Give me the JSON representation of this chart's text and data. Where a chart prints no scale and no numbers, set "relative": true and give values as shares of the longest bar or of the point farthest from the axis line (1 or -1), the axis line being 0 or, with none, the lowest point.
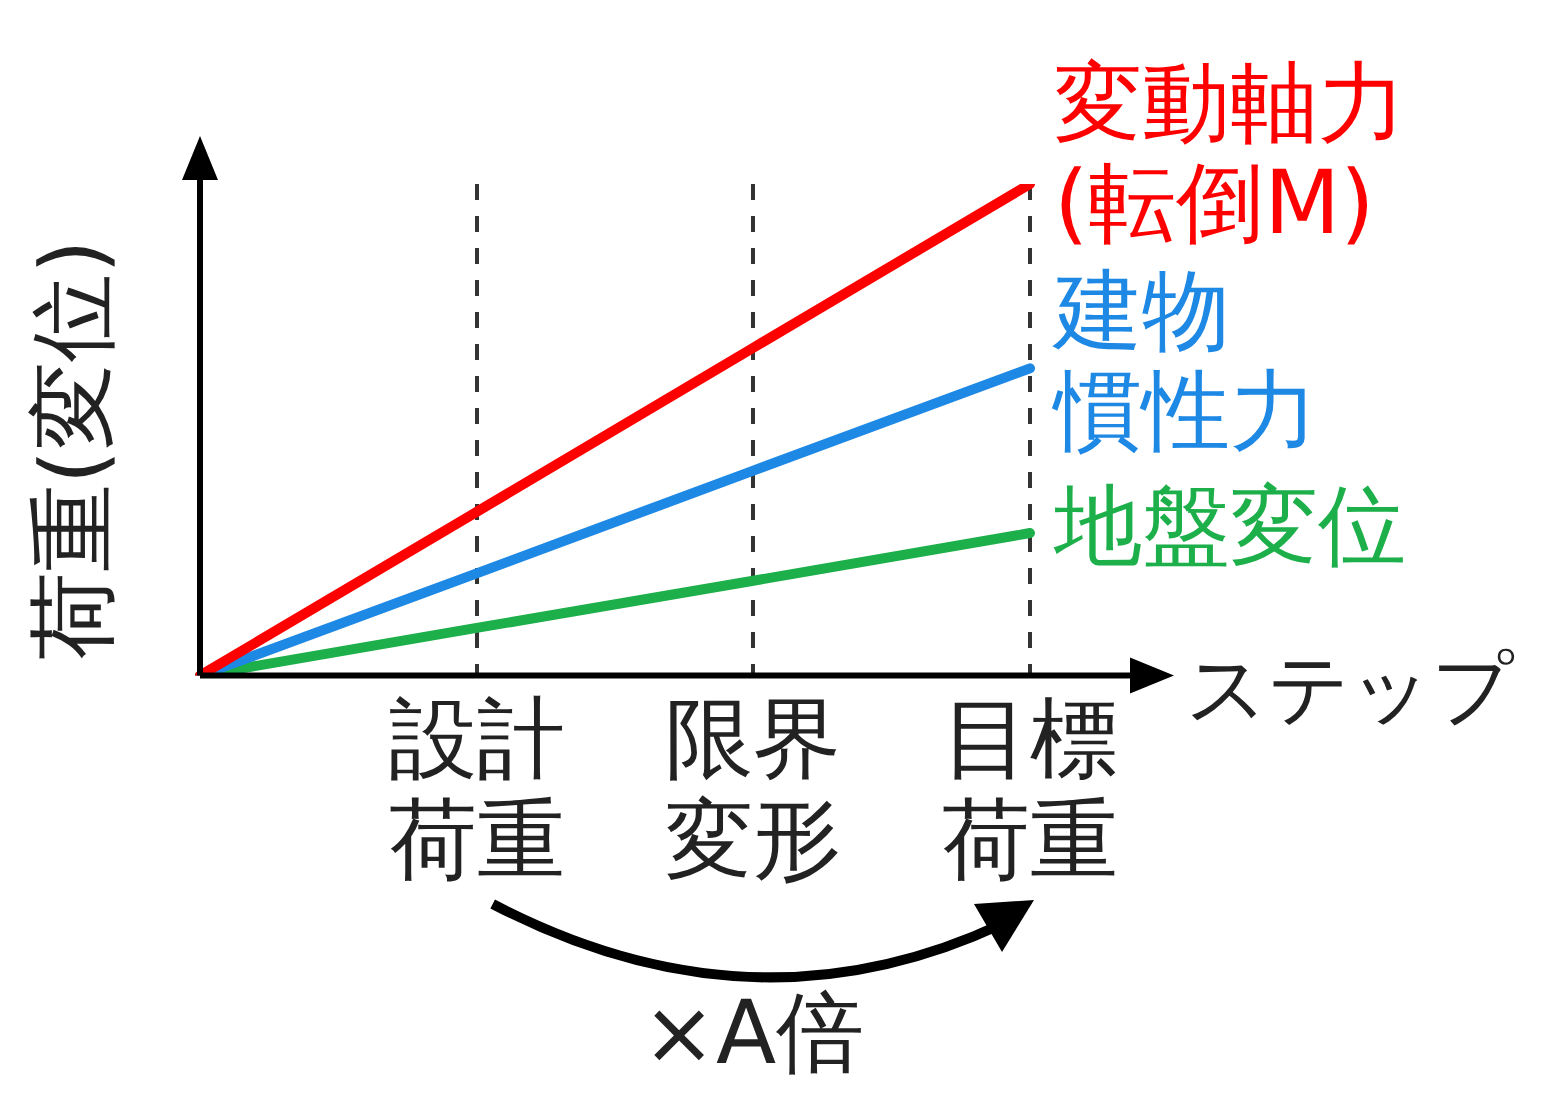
{
  "chart_data": {
    "type": "line",
    "relative": true,
    "ylabel": "荷重(変位)",
    "xlabel": "ステップ",
    "categories": [
      null,
      "設計荷重",
      "限界変形",
      "目標荷重"
    ],
    "series": [
      {
        "name": "変動軸力(転倒M)",
        "color": "#ff0000",
        "values": [
          0,
          0.333,
          0.667,
          1
        ]
      },
      {
        "name": "建物慣性力",
        "color": "#1e88e5",
        "values": [
          0,
          0.208,
          0.417,
          0.625
        ]
      },
      {
        "name": "地盤変位",
        "color": "#1db04a",
        "values": [
          0,
          0.097,
          0.193,
          0.29
        ]
      }
    ],
    "grid": "x",
    "line_style": "solid",
    "marker": "none",
    "legend": false,
    "tick_labels": "x",
    "annotations": [
      "×A倍"
    ]
  }
}
